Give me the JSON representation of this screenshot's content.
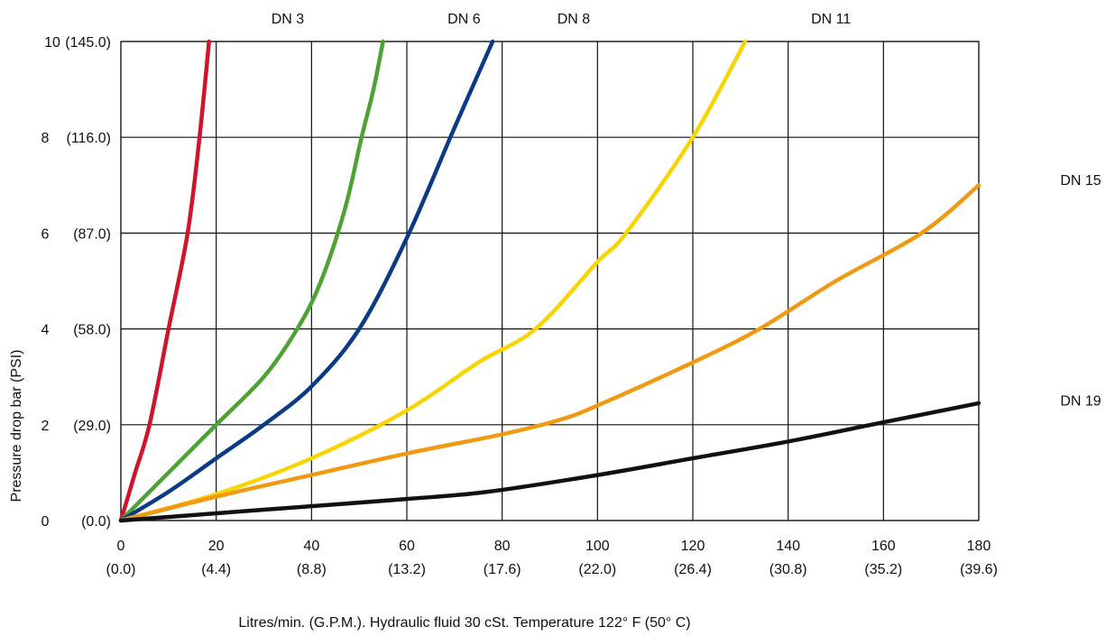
{
  "chart_data": {
    "type": "line",
    "xlabel": "Litres/min. (G.P.M.). Hydraulic fluid 30 cSt. Temperature 122° F (50° C)",
    "ylabel": "Pressure drop bar (PSI)",
    "xlim": [
      0,
      180
    ],
    "ylim": [
      0,
      10
    ],
    "grid": true,
    "x_ticks": [
      {
        "value": 0,
        "label": "0",
        "sublabel": "(0.0)"
      },
      {
        "value": 20,
        "label": "20",
        "sublabel": "(4.4)"
      },
      {
        "value": 40,
        "label": "40",
        "sublabel": "(8.8)"
      },
      {
        "value": 60,
        "label": "60",
        "sublabel": "(13.2)"
      },
      {
        "value": 80,
        "label": "80",
        "sublabel": "(17.6)"
      },
      {
        "value": 100,
        "label": "100",
        "sublabel": "(22.0)"
      },
      {
        "value": 120,
        "label": "120",
        "sublabel": "(26.4)"
      },
      {
        "value": 140,
        "label": "140",
        "sublabel": "(30.8)"
      },
      {
        "value": 160,
        "label": "160",
        "sublabel": "(35.2)"
      },
      {
        "value": 180,
        "label": "180",
        "sublabel": "(39.6)"
      }
    ],
    "y_ticks": [
      {
        "value": 0,
        "label": "0",
        "sublabel": "(0.0)"
      },
      {
        "value": 2,
        "label": "2",
        "sublabel": "(29.0)"
      },
      {
        "value": 4,
        "label": "4",
        "sublabel": "(58.0)"
      },
      {
        "value": 6,
        "label": "6",
        "sublabel": "(87.0)"
      },
      {
        "value": 8,
        "label": "8",
        "sublabel": "(116.0)"
      },
      {
        "value": 10,
        "label": "10",
        "sublabel": "(145.0)"
      }
    ],
    "series": [
      {
        "name": "DN 3",
        "color": "#d0142c",
        "x": [
          0,
          3,
          6,
          10,
          14,
          16.5,
          18.5
        ],
        "y": [
          0,
          1.0,
          2.0,
          4.0,
          6.0,
          8.0,
          10.0
        ]
      },
      {
        "name": "DN 6",
        "color": "#4ca233",
        "x": [
          0,
          10,
          20,
          30,
          37,
          42,
          47,
          50.5,
          53,
          55
        ],
        "y": [
          0,
          1.0,
          2.0,
          3.0,
          4.0,
          5.0,
          6.5,
          8.0,
          9.0,
          10.0
        ]
      },
      {
        "name": "DN 8",
        "color": "#0b3a86",
        "x": [
          0,
          10,
          20,
          30,
          40,
          50,
          60,
          70,
          78
        ],
        "y": [
          0,
          0.6,
          1.3,
          2.0,
          2.8,
          4.0,
          5.9,
          8.2,
          10.0
        ]
      },
      {
        "name": "DN 11",
        "color": "#f8d500",
        "x": [
          0,
          20,
          40,
          60,
          75,
          87,
          100,
          106,
          120,
          131
        ],
        "y": [
          0,
          0.55,
          1.3,
          2.3,
          3.3,
          4.0,
          5.4,
          6.0,
          8.0,
          10.0
        ]
      },
      {
        "name": "DN 15",
        "color": "#ef9a12",
        "x": [
          0,
          20,
          40,
          60,
          80,
          92,
          100,
          120,
          134,
          150,
          168,
          180
        ],
        "y": [
          0,
          0.5,
          0.95,
          1.4,
          1.8,
          2.1,
          2.4,
          3.3,
          4.0,
          5.0,
          6.0,
          7.0
        ]
      },
      {
        "name": "DN 19",
        "color": "#111111",
        "x": [
          0,
          20,
          40,
          60,
          77,
          100,
          120,
          140,
          160,
          180
        ],
        "y": [
          0,
          0.15,
          0.3,
          0.45,
          0.6,
          0.95,
          1.3,
          1.65,
          2.05,
          2.45
        ]
      }
    ],
    "series_labels": [
      {
        "text": "DN 3",
        "anchor_x": 35
      },
      {
        "text": "DN 6",
        "anchor_x": 72
      },
      {
        "text": "DN 8",
        "anchor_x": 95
      },
      {
        "text": "DN 11",
        "anchor_x": 149
      },
      {
        "text": "DN 15",
        "side": "right",
        "anchor_y": 7.1
      },
      {
        "text": "DN 19",
        "side": "right",
        "anchor_y": 2.5
      }
    ]
  }
}
